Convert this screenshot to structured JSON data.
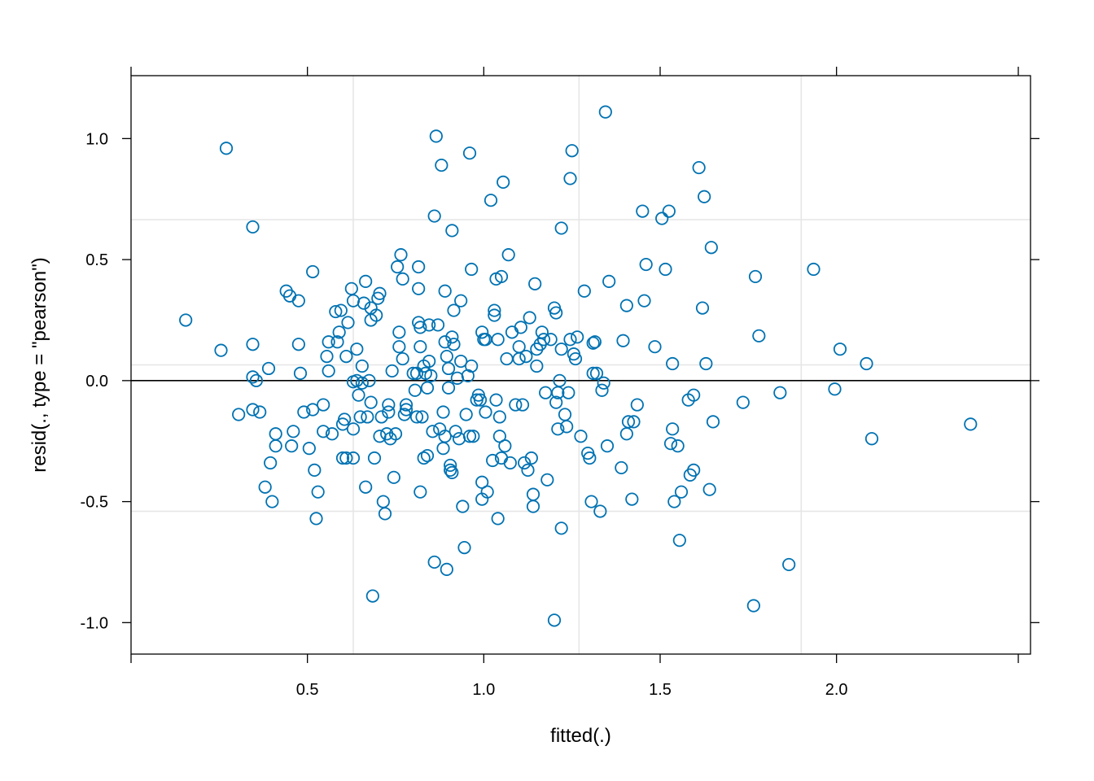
{
  "chart_data": {
    "type": "scatter",
    "xlabel": "fitted(.)",
    "ylabel": "resid(., type = \"pearson\")",
    "xlim": [
      0.0,
      2.55
    ],
    "ylim": [
      -1.13,
      1.26
    ],
    "x_ticks": [
      0.5,
      1.0,
      1.5,
      2.0
    ],
    "y_ticks": [
      -1.0,
      -0.5,
      0.0,
      0.5,
      1.0
    ],
    "x_tick_labels": [
      "0.5",
      "1.0",
      "1.5",
      "2.0"
    ],
    "y_tick_labels": [
      "-1.0",
      "-0.5",
      "0.0",
      "0.5",
      "1.0"
    ],
    "grid": {
      "x": [
        0.63,
        1.27,
        1.9
      ],
      "y": [
        -0.54,
        0.065,
        0.665
      ]
    },
    "reference_line_y": 0.0,
    "colors": {
      "point": "#0072b2",
      "grid": "#e6e6e6",
      "reference": "#000000"
    },
    "points": [
      [
        0.155,
        0.25
      ],
      [
        0.255,
        0.125
      ],
      [
        0.27,
        0.96
      ],
      [
        0.305,
        -0.14
      ],
      [
        0.345,
        0.635
      ],
      [
        0.345,
        0.015
      ],
      [
        0.345,
        0.15
      ],
      [
        0.345,
        -0.12
      ],
      [
        0.355,
        0.0
      ],
      [
        0.365,
        -0.13
      ],
      [
        0.38,
        -0.44
      ],
      [
        0.39,
        0.05
      ],
      [
        0.395,
        -0.34
      ],
      [
        0.4,
        -0.5
      ],
      [
        0.41,
        -0.22
      ],
      [
        0.41,
        -0.27
      ],
      [
        0.44,
        0.37
      ],
      [
        0.45,
        0.35
      ],
      [
        0.455,
        -0.27
      ],
      [
        0.46,
        -0.21
      ],
      [
        0.475,
        0.15
      ],
      [
        0.475,
        0.33
      ],
      [
        0.48,
        0.03
      ],
      [
        0.49,
        -0.13
      ],
      [
        0.505,
        -0.28
      ],
      [
        0.515,
        0.45
      ],
      [
        0.515,
        -0.12
      ],
      [
        0.52,
        -0.37
      ],
      [
        0.525,
        -0.57
      ],
      [
        0.53,
        -0.46
      ],
      [
        0.545,
        -0.1
      ],
      [
        0.545,
        -0.21
      ],
      [
        0.555,
        0.1
      ],
      [
        0.56,
        0.04
      ],
      [
        0.56,
        0.16
      ],
      [
        0.57,
        -0.22
      ],
      [
        0.58,
        0.285
      ],
      [
        0.585,
        0.16
      ],
      [
        0.59,
        0.2
      ],
      [
        0.595,
        0.29
      ],
      [
        0.6,
        -0.18
      ],
      [
        0.6,
        -0.32
      ],
      [
        0.605,
        -0.16
      ],
      [
        0.61,
        0.1
      ],
      [
        0.61,
        -0.32
      ],
      [
        0.615,
        0.24
      ],
      [
        0.625,
        0.38
      ],
      [
        0.63,
        0.33
      ],
      [
        0.63,
        -0.2
      ],
      [
        0.63,
        -0.32
      ],
      [
        0.63,
        -0.005
      ],
      [
        0.64,
        0.0
      ],
      [
        0.64,
        0.13
      ],
      [
        0.645,
        -0.06
      ],
      [
        0.65,
        -0.15
      ],
      [
        0.655,
        0.06
      ],
      [
        0.655,
        -0.01
      ],
      [
        0.66,
        0.32
      ],
      [
        0.665,
        0.41
      ],
      [
        0.665,
        -0.44
      ],
      [
        0.67,
        -0.15
      ],
      [
        0.675,
        0.0
      ],
      [
        0.68,
        -0.09
      ],
      [
        0.68,
        0.3
      ],
      [
        0.68,
        0.25
      ],
      [
        0.685,
        -0.89
      ],
      [
        0.69,
        -0.32
      ],
      [
        0.695,
        0.27
      ],
      [
        0.7,
        0.34
      ],
      [
        0.705,
        0.36
      ],
      [
        0.705,
        -0.23
      ],
      [
        0.71,
        -0.15
      ],
      [
        0.715,
        -0.5
      ],
      [
        0.72,
        -0.55
      ],
      [
        0.725,
        -0.22
      ],
      [
        0.73,
        -0.1
      ],
      [
        0.73,
        -0.13
      ],
      [
        0.735,
        -0.24
      ],
      [
        0.74,
        0.04
      ],
      [
        0.745,
        -0.4
      ],
      [
        0.75,
        -0.22
      ],
      [
        0.755,
        0.47
      ],
      [
        0.76,
        0.2
      ],
      [
        0.76,
        0.14
      ],
      [
        0.765,
        0.52
      ],
      [
        0.77,
        0.09
      ],
      [
        0.77,
        0.42
      ],
      [
        0.775,
        -0.14
      ],
      [
        0.78,
        -0.1
      ],
      [
        0.78,
        -0.12
      ],
      [
        0.8,
        0.03
      ],
      [
        0.805,
        -0.04
      ],
      [
        0.81,
        0.03
      ],
      [
        0.81,
        -0.15
      ],
      [
        0.815,
        0.47
      ],
      [
        0.815,
        0.38
      ],
      [
        0.815,
        0.24
      ],
      [
        0.82,
        0.14
      ],
      [
        0.82,
        0.22
      ],
      [
        0.82,
        -0.46
      ],
      [
        0.825,
        -0.15
      ],
      [
        0.83,
        -0.32
      ],
      [
        0.83,
        0.06
      ],
      [
        0.835,
        0.03
      ],
      [
        0.84,
        -0.03
      ],
      [
        0.84,
        -0.31
      ],
      [
        0.845,
        0.23
      ],
      [
        0.845,
        0.08
      ],
      [
        0.85,
        0.02
      ],
      [
        0.855,
        -0.21
      ],
      [
        0.86,
        -0.75
      ],
      [
        0.86,
        0.68
      ],
      [
        0.865,
        1.01
      ],
      [
        0.87,
        0.23
      ],
      [
        0.875,
        -0.2
      ],
      [
        0.88,
        0.89
      ],
      [
        0.885,
        -0.13
      ],
      [
        0.885,
        -0.28
      ],
      [
        0.89,
        0.37
      ],
      [
        0.89,
        -0.23
      ],
      [
        0.89,
        0.16
      ],
      [
        0.895,
        -0.78
      ],
      [
        0.895,
        0.1
      ],
      [
        0.9,
        -0.03
      ],
      [
        0.9,
        0.05
      ],
      [
        0.905,
        -0.37
      ],
      [
        0.905,
        -0.35
      ],
      [
        0.91,
        0.62
      ],
      [
        0.91,
        0.18
      ],
      [
        0.91,
        -0.38
      ],
      [
        0.915,
        0.15
      ],
      [
        0.915,
        0.29
      ],
      [
        0.92,
        -0.21
      ],
      [
        0.925,
        0.01
      ],
      [
        0.93,
        -0.24
      ],
      [
        0.935,
        0.08
      ],
      [
        0.935,
        0.33
      ],
      [
        0.94,
        -0.52
      ],
      [
        0.945,
        -0.69
      ],
      [
        0.95,
        -0.14
      ],
      [
        0.955,
        0.02
      ],
      [
        0.96,
        0.94
      ],
      [
        0.96,
        -0.23
      ],
      [
        0.965,
        0.06
      ],
      [
        0.965,
        0.46
      ],
      [
        0.97,
        -0.23
      ],
      [
        0.98,
        -0.08
      ],
      [
        0.985,
        -0.06
      ],
      [
        0.99,
        -0.08
      ],
      [
        0.995,
        -0.42
      ],
      [
        0.995,
        0.2
      ],
      [
        0.995,
        -0.49
      ],
      [
        1.0,
        0.17
      ],
      [
        1.005,
        0.17
      ],
      [
        1.005,
        -0.13
      ],
      [
        1.01,
        -0.46
      ],
      [
        1.02,
        0.745
      ],
      [
        1.025,
        -0.33
      ],
      [
        1.03,
        0.27
      ],
      [
        1.03,
        0.29
      ],
      [
        1.035,
        -0.08
      ],
      [
        1.035,
        0.42
      ],
      [
        1.04,
        -0.57
      ],
      [
        1.04,
        0.17
      ],
      [
        1.045,
        -0.23
      ],
      [
        1.045,
        -0.15
      ],
      [
        1.05,
        -0.32
      ],
      [
        1.05,
        0.43
      ],
      [
        1.055,
        0.82
      ],
      [
        1.06,
        -0.27
      ],
      [
        1.065,
        0.09
      ],
      [
        1.07,
        0.52
      ],
      [
        1.075,
        -0.34
      ],
      [
        1.08,
        0.2
      ],
      [
        1.09,
        -0.1
      ],
      [
        1.1,
        0.14
      ],
      [
        1.1,
        0.09
      ],
      [
        1.105,
        0.22
      ],
      [
        1.11,
        -0.1
      ],
      [
        1.115,
        -0.34
      ],
      [
        1.12,
        0.1
      ],
      [
        1.125,
        -0.37
      ],
      [
        1.13,
        0.26
      ],
      [
        1.135,
        -0.32
      ],
      [
        1.14,
        -0.52
      ],
      [
        1.14,
        -0.47
      ],
      [
        1.145,
        0.4
      ],
      [
        1.15,
        0.06
      ],
      [
        1.15,
        0.13
      ],
      [
        1.16,
        0.15
      ],
      [
        1.165,
        0.2
      ],
      [
        1.17,
        0.17
      ],
      [
        1.175,
        -0.05
      ],
      [
        1.18,
        -0.41
      ],
      [
        1.19,
        0.17
      ],
      [
        1.2,
        -0.99
      ],
      [
        1.2,
        0.3
      ],
      [
        1.205,
        0.28
      ],
      [
        1.205,
        -0.09
      ],
      [
        1.21,
        -0.05
      ],
      [
        1.21,
        -0.2
      ],
      [
        1.215,
        0.0
      ],
      [
        1.22,
        0.13
      ],
      [
        1.22,
        0.63
      ],
      [
        1.22,
        -0.61
      ],
      [
        1.23,
        -0.14
      ],
      [
        1.235,
        -0.19
      ],
      [
        1.24,
        -0.05
      ],
      [
        1.245,
        0.17
      ],
      [
        1.245,
        0.835
      ],
      [
        1.25,
        0.95
      ],
      [
        1.255,
        0.11
      ],
      [
        1.26,
        0.09
      ],
      [
        1.265,
        0.18
      ],
      [
        1.275,
        -0.23
      ],
      [
        1.285,
        0.37
      ],
      [
        1.295,
        -0.3
      ],
      [
        1.3,
        -0.32
      ],
      [
        1.305,
        -0.5
      ],
      [
        1.31,
        0.155
      ],
      [
        1.31,
        0.03
      ],
      [
        1.315,
        0.16
      ],
      [
        1.32,
        0.03
      ],
      [
        1.33,
        -0.54
      ],
      [
        1.335,
        -0.04
      ],
      [
        1.34,
        -0.01
      ],
      [
        1.345,
        1.11
      ],
      [
        1.35,
        -0.27
      ],
      [
        1.355,
        0.41
      ],
      [
        1.39,
        -0.36
      ],
      [
        1.395,
        0.165
      ],
      [
        1.405,
        -0.22
      ],
      [
        1.405,
        0.31
      ],
      [
        1.41,
        -0.17
      ],
      [
        1.42,
        -0.49
      ],
      [
        1.425,
        -0.17
      ],
      [
        1.435,
        -0.1
      ],
      [
        1.45,
        0.7
      ],
      [
        1.455,
        0.33
      ],
      [
        1.46,
        0.48
      ],
      [
        1.485,
        0.14
      ],
      [
        1.505,
        0.67
      ],
      [
        1.515,
        0.46
      ],
      [
        1.525,
        0.7
      ],
      [
        1.53,
        -0.26
      ],
      [
        1.535,
        0.07
      ],
      [
        1.535,
        -0.2
      ],
      [
        1.54,
        -0.5
      ],
      [
        1.55,
        -0.27
      ],
      [
        1.555,
        -0.66
      ],
      [
        1.56,
        -0.46
      ],
      [
        1.58,
        -0.08
      ],
      [
        1.585,
        -0.39
      ],
      [
        1.595,
        -0.06
      ],
      [
        1.595,
        -0.37
      ],
      [
        1.61,
        0.88
      ],
      [
        1.62,
        0.3
      ],
      [
        1.625,
        0.76
      ],
      [
        1.63,
        0.07
      ],
      [
        1.64,
        -0.45
      ],
      [
        1.645,
        0.55
      ],
      [
        1.65,
        -0.17
      ],
      [
        1.735,
        -0.09
      ],
      [
        1.765,
        -0.93
      ],
      [
        1.77,
        0.43
      ],
      [
        1.78,
        0.185
      ],
      [
        1.84,
        -0.05
      ],
      [
        1.865,
        -0.76
      ],
      [
        1.935,
        0.46
      ],
      [
        1.995,
        -0.035
      ],
      [
        2.01,
        0.13
      ],
      [
        2.085,
        0.07
      ],
      [
        2.1,
        -0.24
      ],
      [
        2.38,
        -0.18
      ]
    ]
  }
}
